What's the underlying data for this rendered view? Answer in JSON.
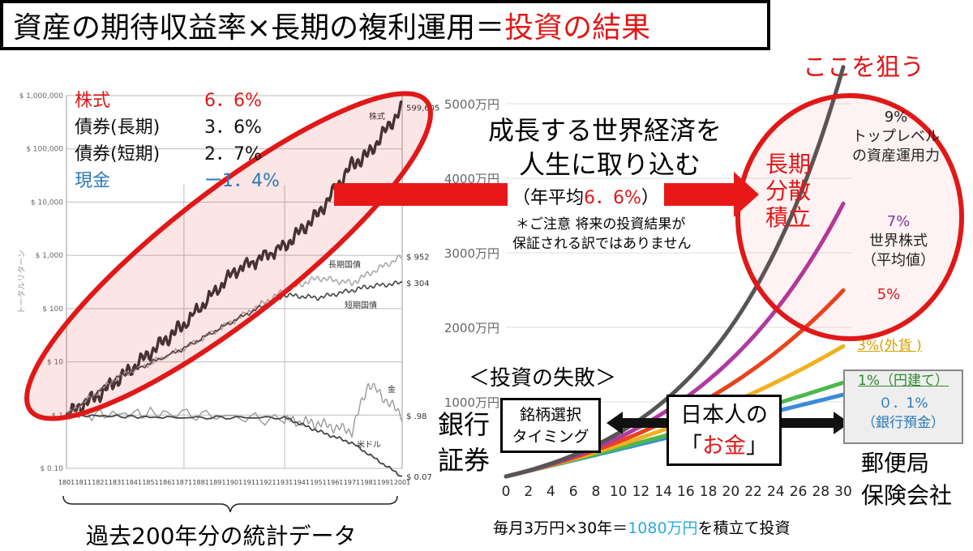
{
  "title": {
    "prefix": "資産の期待収益率×長期の複利運用＝",
    "highlight": "投資の結果"
  },
  "aim_label": "ここを狙う",
  "left_legend": [
    {
      "name": "株式",
      "value": "6．6%",
      "color": "#e01818"
    },
    {
      "name": "債券(長期)",
      "value": "3．6%",
      "color": "#111111"
    },
    {
      "name": "債券(短期)",
      "value": "2．7%",
      "color": "#111111"
    },
    {
      "name": "現金",
      "value": "ー1．4%",
      "color": "#2a7ab8"
    }
  ],
  "left_caption": "過去200年分の統計データ",
  "center_message": {
    "line1": "成長する世界経済を",
    "line2": "人生に取り込む",
    "avg_open": "（年平均",
    "avg_value": "6．6%",
    "avg_close": "）",
    "note1": "＊ご注意  将来の投資結果が",
    "note2": "保証される訳ではありません"
  },
  "strategy": [
    "長期",
    "分散",
    "積立"
  ],
  "failure_label": "＜投資の失敗＞",
  "boxes": {
    "timing1": "銘柄選択",
    "timing2": "タイミング",
    "money1": "日本人の",
    "money_open": "「",
    "money_value": "お金",
    "money_close": "」"
  },
  "institutions": {
    "left1": "銀行",
    "left2": "証券",
    "right1": "郵便局",
    "right2": "保険会社"
  },
  "bottom_note": {
    "prefix": "毎月3万円×30年＝",
    "highlight": "1080万円",
    "suffix": "を積立て投資"
  },
  "chart_data": [
    {
      "type": "line",
      "xlabel": "",
      "ylabel": "トータルリターン",
      "y_scale": "log",
      "ylim": [
        0.1,
        1000000
      ],
      "y_ticks": [
        "$ 1,000,000",
        "$ 100,000",
        "$ 10,000",
        "$ 1,000",
        "$ 100",
        "$ 10",
        "$ 1",
        "$ 0.10"
      ],
      "x_ticks": [
        "1801",
        "1811",
        "1821",
        "1831",
        "1841",
        "1851",
        "1861",
        "1871",
        "1881",
        "1891",
        "1901",
        "1911",
        "1921",
        "1931",
        "1941",
        "1951",
        "1961",
        "1971",
        "1981",
        "1991",
        "2001"
      ],
      "series": [
        {
          "name": "株式",
          "end_label": "599,605",
          "x": [
            1801,
            1821,
            1841,
            1861,
            1871,
            1901,
            1931,
            1951,
            1971,
            1981,
            2001
          ],
          "values": [
            1,
            2.5,
            8,
            28,
            50,
            500,
            1500,
            6000,
            50000,
            80000,
            599605
          ]
        },
        {
          "name": "長期国債",
          "end_label": "$ 952",
          "x": [
            1801,
            1831,
            1871,
            1901,
            1931,
            1951,
            1971,
            1981,
            2001
          ],
          "values": [
            1,
            5,
            18,
            60,
            220,
            380,
            300,
            450,
            952
          ]
        },
        {
          "name": "短期国債",
          "end_label": "$ 304",
          "x": [
            1801,
            1831,
            1871,
            1901,
            1931,
            1951,
            1971,
            1981,
            2001
          ],
          "values": [
            1,
            5,
            18,
            60,
            180,
            160,
            220,
            260,
            304
          ]
        },
        {
          "name": "金",
          "end_label": "$ .98",
          "x": [
            1801,
            1861,
            1931,
            1951,
            1971,
            1981,
            2001
          ],
          "values": [
            1,
            1.1,
            0.8,
            0.7,
            0.5,
            4,
            0.98
          ]
        },
        {
          "name": "米ドル",
          "end_label": "$ 0.07",
          "x": [
            1801,
            1861,
            1931,
            1951,
            1971,
            2001
          ],
          "values": [
            1,
            0.9,
            0.9,
            0.5,
            0.3,
            0.07
          ]
        }
      ]
    },
    {
      "type": "line",
      "xlabel": "",
      "ylabel": "",
      "xlim": [
        0,
        30
      ],
      "ylim": [
        0,
        5000
      ],
      "x_ticks": [
        0,
        2,
        4,
        6,
        8,
        10,
        12,
        14,
        16,
        18,
        20,
        22,
        24,
        26,
        28,
        30
      ],
      "y_ticks": [
        "1000万円",
        "2000万円",
        "3000万円",
        "4000万円",
        "5000万円"
      ],
      "series": [
        {
          "name": "9%",
          "label_lines": [
            "9%",
            "トップレベル",
            "の資産運用力"
          ],
          "color": "#555555",
          "rate": 0.09
        },
        {
          "name": "7%",
          "label_lines": [
            "7%",
            "世界株式",
            "（平均値）"
          ],
          "color": "#b03aa0",
          "rate": 0.07
        },
        {
          "name": "5%",
          "label_lines": [
            "5%"
          ],
          "color": "#e8431c",
          "rate": 0.05
        },
        {
          "name": "3%(外貨 )",
          "label_lines": [
            "3%(外貨 )"
          ],
          "color": "#f0b020",
          "rate": 0.03
        },
        {
          "name": "1%（円建て）",
          "label_lines": [
            "1%（円建て）"
          ],
          "color": "#4cb84c",
          "rate": 0.01
        },
        {
          "name": "０．1%",
          "label_lines": [
            "０．1%",
            "（銀行預金）"
          ],
          "color": "#3a8ad8",
          "rate": 0.001
        }
      ],
      "monthly_contribution": 3,
      "unit": "万円"
    }
  ]
}
